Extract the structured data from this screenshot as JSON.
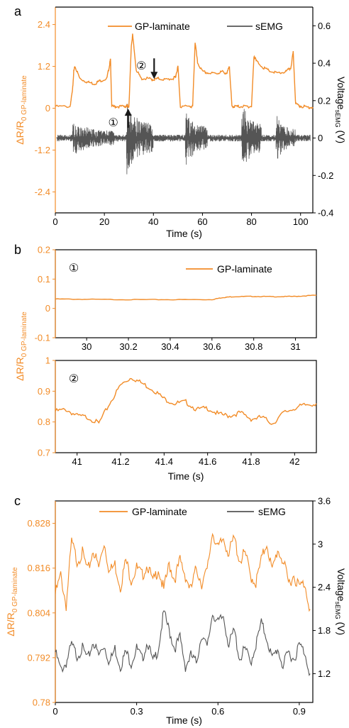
{
  "colors": {
    "orange": "#F28C28",
    "gray": "#555555",
    "axis": "#000000",
    "marker": "#1a1a1a"
  },
  "chart_data": [
    {
      "panel": "a",
      "type": "line",
      "xlabel": "Time (s)",
      "ylabel_left": "ΔR/R0 GP-laminate",
      "ylabel_right": "VoltagesEMG (V)",
      "xlim": [
        0,
        105
      ],
      "ylim_left": [
        -3.0,
        2.9
      ],
      "ylim_right": [
        -0.4,
        0.7
      ],
      "x_ticks": [
        "0",
        "20",
        "40",
        "60",
        "80",
        "100"
      ],
      "y_left_ticks": [
        "-2.4",
        "-1.2",
        "0",
        "1.2",
        "2.4"
      ],
      "y_right_ticks": [
        "-0.4",
        "-0.2",
        "0",
        "0.2",
        "0.4",
        "0.6"
      ],
      "legend": [
        "GP-laminate",
        "sEMG"
      ],
      "legend_position": "top",
      "annotations": [
        {
          "label": "①",
          "x": 30,
          "y": 0.05
        },
        {
          "label": "②",
          "x": 40,
          "y": 0.82
        }
      ],
      "series": [
        {
          "name": "GP-laminate",
          "axis": "left",
          "x": [
            0,
            6,
            7,
            7.5,
            8,
            10,
            13,
            16,
            18,
            21,
            22,
            22.5,
            23,
            25,
            28,
            29,
            30,
            31,
            31.5,
            33,
            35,
            38,
            40,
            42,
            45,
            48,
            49,
            50,
            51,
            55,
            56,
            57,
            58,
            60,
            63,
            66,
            68,
            70,
            71,
            72,
            73,
            75,
            78,
            80,
            81,
            82,
            85,
            88,
            91,
            94,
            96,
            97,
            98,
            100,
            103,
            105
          ],
          "values": [
            0.05,
            0.05,
            0.5,
            1.05,
            1.2,
            0.85,
            0.75,
            0.7,
            0.78,
            0.85,
            1.2,
            1.4,
            0.05,
            0.05,
            0.05,
            0.05,
            0.05,
            1.8,
            2.1,
            1.1,
            0.85,
            0.85,
            0.82,
            0.85,
            0.82,
            0.85,
            0.9,
            1.2,
            0.05,
            0.05,
            0.05,
            1.9,
            1.3,
            1.05,
            1.0,
            1.0,
            1.05,
            1.0,
            1.2,
            0.05,
            0.05,
            0.05,
            0.05,
            0.05,
            1.5,
            1.35,
            1.15,
            1.05,
            1.0,
            1.05,
            1.15,
            1.6,
            0.12,
            0.06,
            0.03,
            0.03
          ]
        },
        {
          "name": "sEMG",
          "axis": "right",
          "type": "signal",
          "baseline": 0,
          "active_windows": [
            [
              7,
              24,
              0.1
            ],
            [
              29,
              40,
              0.2
            ],
            [
              53,
              62,
              0.16
            ],
            [
              76,
              84,
              0.2
            ],
            [
              90,
              98,
              0.13
            ]
          ],
          "quiet_amplitude": 0.018
        }
      ]
    },
    {
      "panel": "b-top",
      "type": "line",
      "xlim": [
        29.85,
        31.1
      ],
      "ylim": [
        -0.1,
        0.2
      ],
      "x_ticks": [
        "30",
        "30.2",
        "30.4",
        "30.6",
        "30.8",
        "31"
      ],
      "y_ticks": [
        "-0.1",
        "0",
        "0.1",
        "0.2"
      ],
      "legend": [
        "GP-laminate"
      ],
      "annotation": "①",
      "series": [
        {
          "name": "GP-laminate",
          "x": [
            29.85,
            30.0,
            30.2,
            30.4,
            30.6,
            30.65,
            30.7,
            30.8,
            30.9,
            31.0,
            31.1
          ],
          "values": [
            0.032,
            0.031,
            0.03,
            0.03,
            0.03,
            0.037,
            0.04,
            0.041,
            0.04,
            0.041,
            0.045
          ]
        }
      ]
    },
    {
      "panel": "b-bottom",
      "type": "line",
      "xlim": [
        40.9,
        42.1
      ],
      "ylim": [
        0.7,
        1.0
      ],
      "x_ticks": [
        "41",
        "41.2",
        "41.4",
        "41.6",
        "41.8",
        "42"
      ],
      "y_ticks": [
        "0.7",
        "0.8",
        "0.9",
        "1"
      ],
      "xlabel": "Time (s)",
      "ylabel": "ΔR/R0 GP-laminate",
      "annotation": "②",
      "series": [
        {
          "name": "GP-laminate",
          "x": [
            40.9,
            40.95,
            41.0,
            41.05,
            41.1,
            41.15,
            41.2,
            41.25,
            41.3,
            41.35,
            41.4,
            41.45,
            41.5,
            41.55,
            41.6,
            41.65,
            41.7,
            41.75,
            41.8,
            41.85,
            41.9,
            41.95,
            42.0,
            42.05,
            42.1
          ],
          "values": [
            0.835,
            0.84,
            0.82,
            0.815,
            0.795,
            0.86,
            0.92,
            0.945,
            0.925,
            0.905,
            0.875,
            0.86,
            0.865,
            0.84,
            0.845,
            0.825,
            0.82,
            0.83,
            0.81,
            0.815,
            0.795,
            0.83,
            0.845,
            0.855,
            0.86
          ]
        }
      ]
    },
    {
      "panel": "c",
      "type": "line",
      "xlabel": "Time (s)",
      "ylabel_left": "ΔR/R0 GP-laminate",
      "ylabel_right": "VoltagesEMG (V)",
      "xlim": [
        0,
        0.95
      ],
      "ylim_left": [
        0.78,
        0.834
      ],
      "ylim_right": [
        0.8,
        3.6
      ],
      "x_ticks": [
        "0",
        "0.3",
        "0.6",
        "0.9"
      ],
      "y_left_ticks": [
        "0.78",
        "0.792",
        "0.804",
        "0.816",
        "0.828"
      ],
      "y_right_ticks": [
        "1.2",
        "1.8",
        "2.4",
        "3",
        "3.6"
      ],
      "legend": [
        "GP-laminate",
        "sEMG"
      ],
      "series": [
        {
          "name": "GP-laminate",
          "axis": "left",
          "x": [
            0,
            0.02,
            0.04,
            0.06,
            0.08,
            0.1,
            0.12,
            0.14,
            0.16,
            0.18,
            0.2,
            0.22,
            0.24,
            0.26,
            0.28,
            0.3,
            0.32,
            0.34,
            0.36,
            0.38,
            0.4,
            0.42,
            0.44,
            0.46,
            0.48,
            0.5,
            0.52,
            0.54,
            0.56,
            0.58,
            0.6,
            0.62,
            0.64,
            0.66,
            0.68,
            0.7,
            0.72,
            0.74,
            0.76,
            0.78,
            0.8,
            0.82,
            0.84,
            0.86,
            0.88,
            0.9,
            0.92,
            0.94
          ],
          "values": [
            0.809,
            0.814,
            0.806,
            0.823,
            0.818,
            0.82,
            0.815,
            0.821,
            0.816,
            0.823,
            0.815,
            0.817,
            0.811,
            0.818,
            0.813,
            0.816,
            0.814,
            0.817,
            0.812,
            0.816,
            0.81,
            0.817,
            0.813,
            0.818,
            0.814,
            0.81,
            0.816,
            0.812,
            0.815,
            0.826,
            0.821,
            0.824,
            0.82,
            0.824,
            0.818,
            0.82,
            0.814,
            0.812,
            0.818,
            0.823,
            0.815,
            0.821,
            0.818,
            0.812,
            0.814,
            0.811,
            0.812,
            0.805
          ]
        },
        {
          "name": "sEMG",
          "axis": "right",
          "x": [
            0,
            0.02,
            0.04,
            0.06,
            0.08,
            0.1,
            0.12,
            0.14,
            0.16,
            0.18,
            0.2,
            0.22,
            0.24,
            0.26,
            0.28,
            0.3,
            0.32,
            0.34,
            0.36,
            0.38,
            0.4,
            0.42,
            0.44,
            0.46,
            0.48,
            0.5,
            0.52,
            0.54,
            0.56,
            0.58,
            0.6,
            0.62,
            0.64,
            0.66,
            0.68,
            0.7,
            0.72,
            0.74,
            0.76,
            0.78,
            0.8,
            0.82,
            0.84,
            0.86,
            0.88,
            0.9,
            0.92,
            0.94
          ],
          "values": [
            1.5,
            1.25,
            1.35,
            1.6,
            1.45,
            1.55,
            1.4,
            1.65,
            1.45,
            1.6,
            1.35,
            1.55,
            1.3,
            1.5,
            1.35,
            1.55,
            1.4,
            1.65,
            1.35,
            1.55,
            2.05,
            1.8,
            1.55,
            1.7,
            1.3,
            1.45,
            1.35,
            1.75,
            1.55,
            2.05,
            1.9,
            2.0,
            1.6,
            1.8,
            1.4,
            1.55,
            1.35,
            1.6,
            1.9,
            1.7,
            1.4,
            1.55,
            1.3,
            1.5,
            1.4,
            1.6,
            1.5,
            1.2
          ]
        }
      ]
    }
  ],
  "panel_labels": [
    "a",
    "b",
    "c"
  ]
}
